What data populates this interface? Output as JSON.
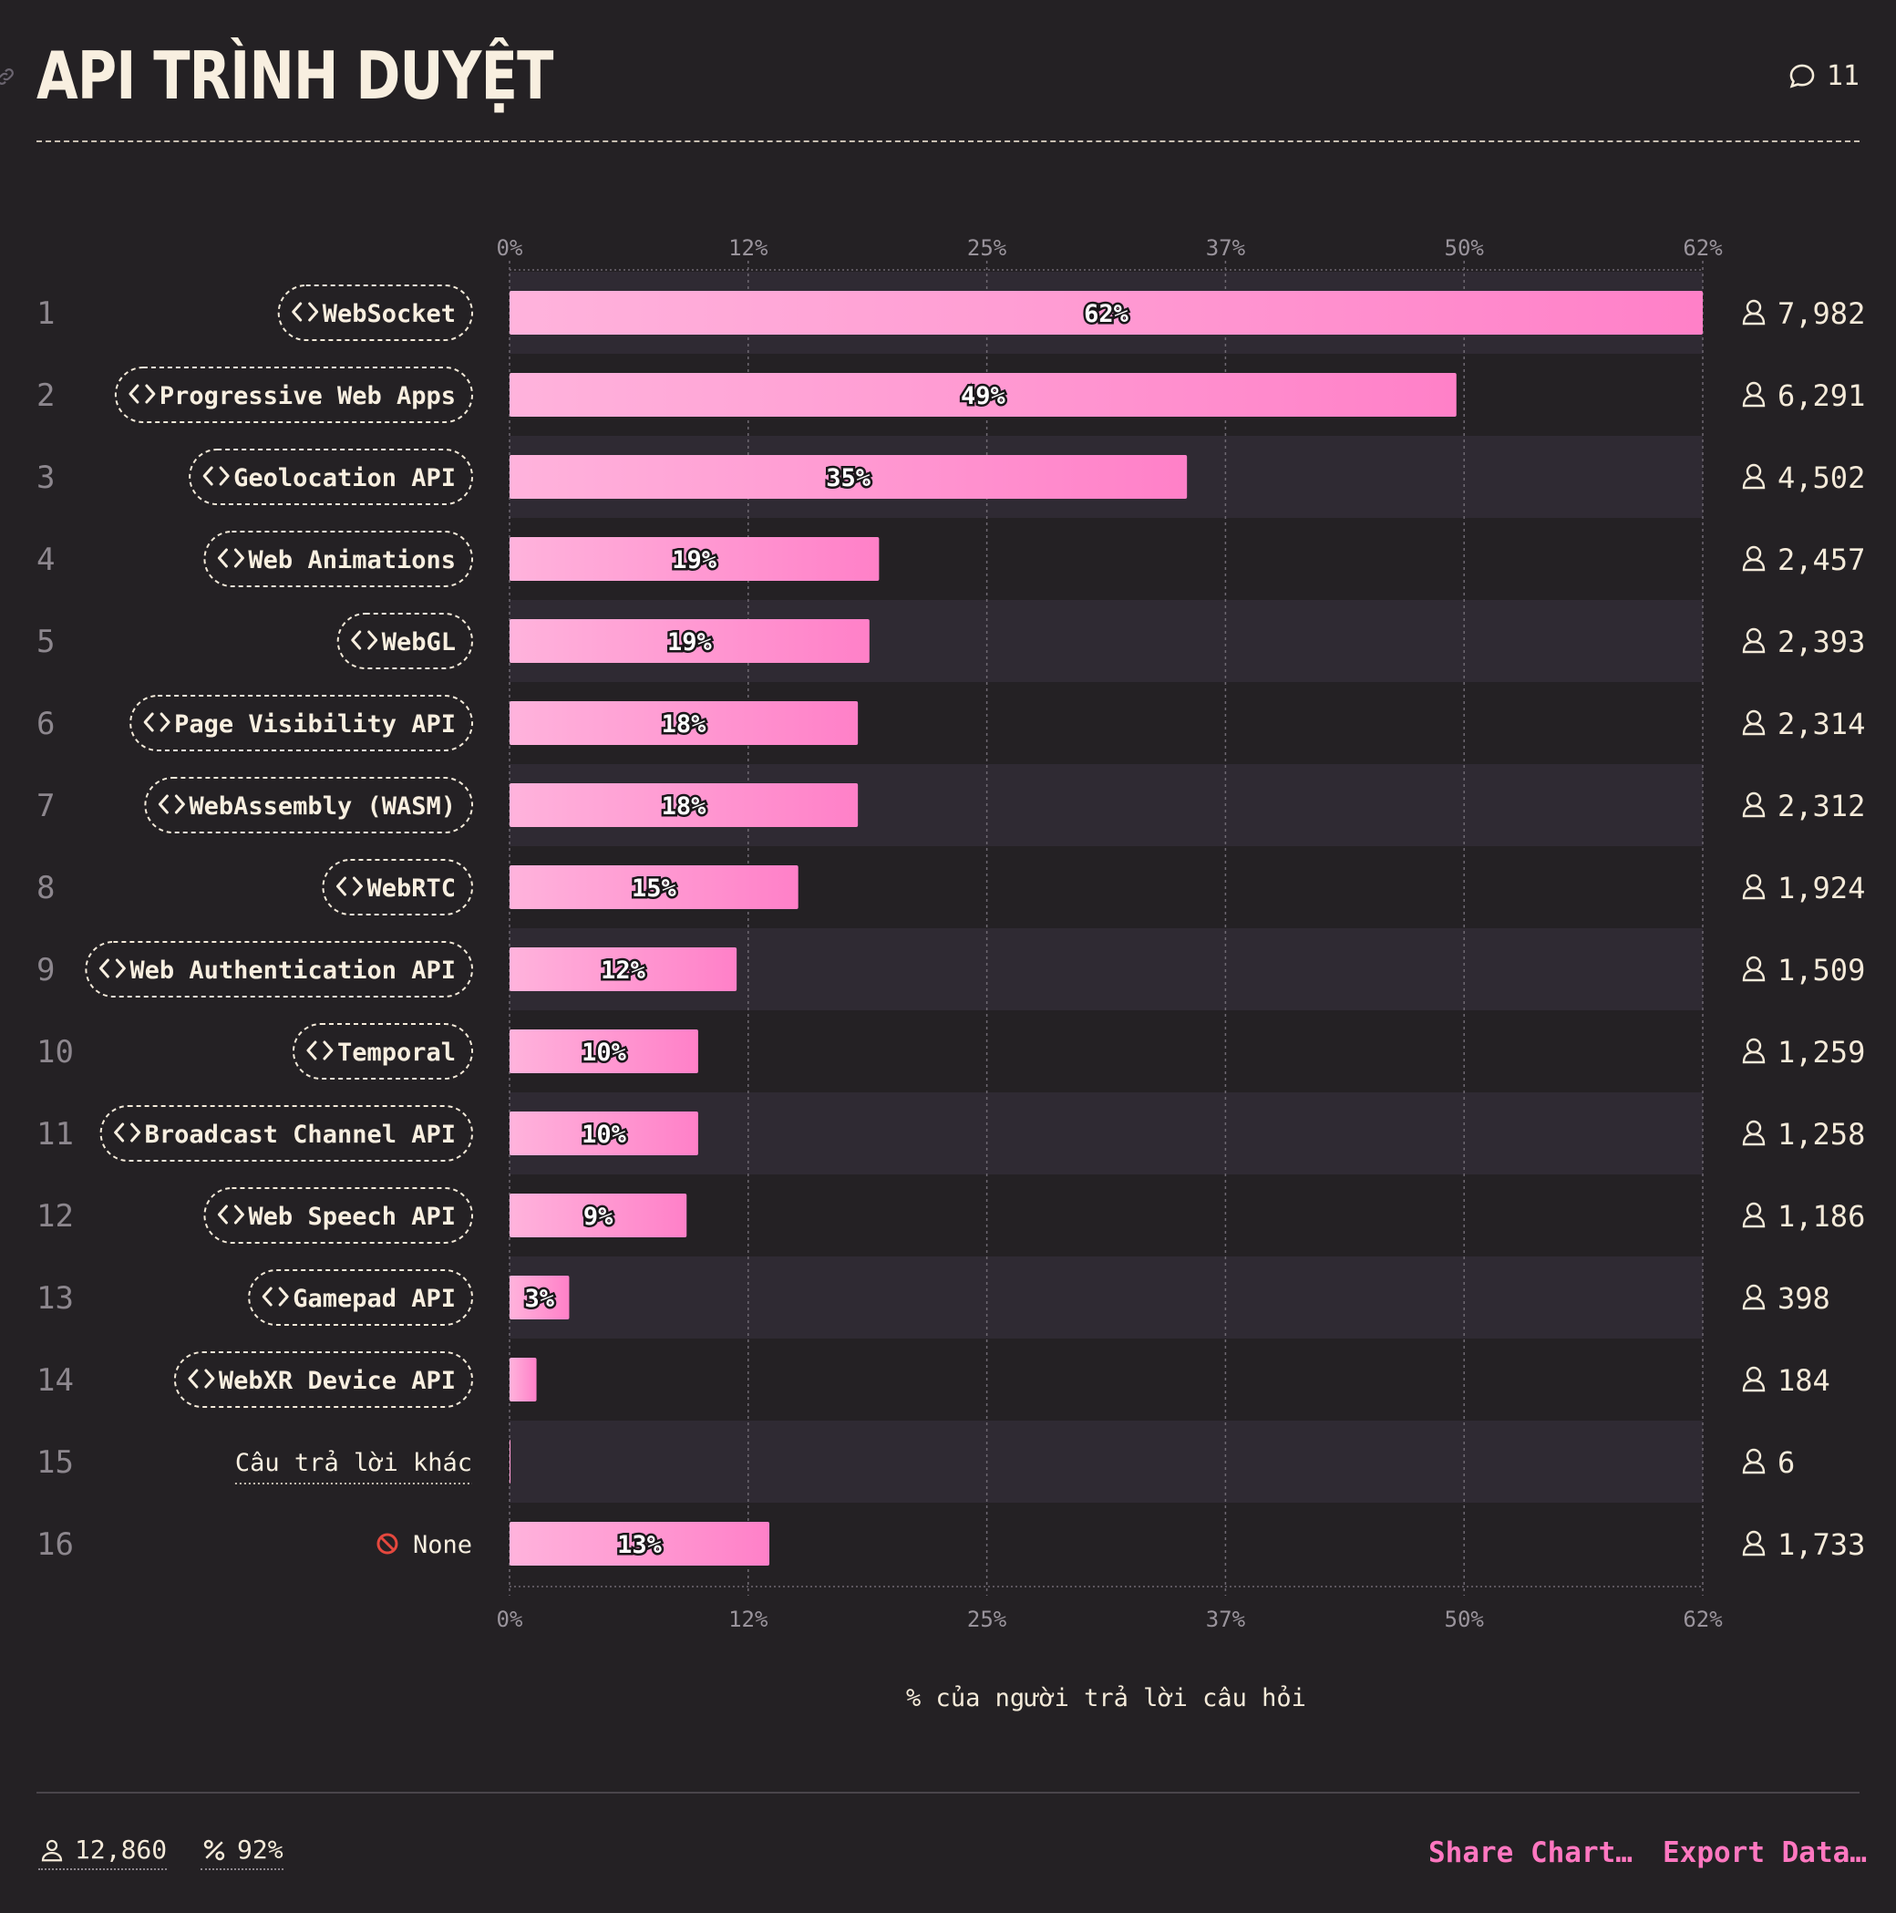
{
  "header": {
    "title": "API TRÌNH DUYỆT",
    "comment_count": "11"
  },
  "chart_data": {
    "type": "bar",
    "orientation": "horizontal",
    "title": "API TRÌNH DUYỆT",
    "xlabel": "% của người trả lời câu hỏi",
    "xlim": [
      0,
      62
    ],
    "x_ticks": [
      "0%",
      "12%",
      "25%",
      "37%",
      "50%",
      "62%"
    ],
    "grid": true,
    "bar_color_start": "#ffb3dc",
    "bar_color_end": "#ff80c8",
    "rows": [
      {
        "rank": "1",
        "label": "WebSocket",
        "kind": "feature",
        "value": 62,
        "value_label": "62%",
        "count": "7,982"
      },
      {
        "rank": "2",
        "label": "Progressive Web Apps",
        "kind": "feature",
        "value": 49.2,
        "value_label": "49%",
        "count": "6,291"
      },
      {
        "rank": "3",
        "label": "Geolocation API",
        "kind": "feature",
        "value": 35.2,
        "value_label": "35%",
        "count": "4,502"
      },
      {
        "rank": "4",
        "label": "Web Animations",
        "kind": "feature",
        "value": 19.2,
        "value_label": "19%",
        "count": "2,457"
      },
      {
        "rank": "5",
        "label": "WebGL",
        "kind": "feature",
        "value": 18.7,
        "value_label": "19%",
        "count": "2,393"
      },
      {
        "rank": "6",
        "label": "Page Visibility API",
        "kind": "feature",
        "value": 18.1,
        "value_label": "18%",
        "count": "2,314"
      },
      {
        "rank": "7",
        "label": "WebAssembly (WASM)",
        "kind": "feature",
        "value": 18.1,
        "value_label": "18%",
        "count": "2,312"
      },
      {
        "rank": "8",
        "label": "WebRTC",
        "kind": "feature",
        "value": 15.0,
        "value_label": "15%",
        "count": "1,924"
      },
      {
        "rank": "9",
        "label": "Web Authentication API",
        "kind": "feature",
        "value": 11.8,
        "value_label": "12%",
        "count": "1,509"
      },
      {
        "rank": "10",
        "label": "Temporal",
        "kind": "feature",
        "value": 9.8,
        "value_label": "10%",
        "count": "1,259"
      },
      {
        "rank": "11",
        "label": "Broadcast Channel API",
        "kind": "feature",
        "value": 9.8,
        "value_label": "10%",
        "count": "1,258"
      },
      {
        "rank": "12",
        "label": "Web Speech API",
        "kind": "feature",
        "value": 9.2,
        "value_label": "9%",
        "count": "1,186"
      },
      {
        "rank": "13",
        "label": "Gamepad API",
        "kind": "feature",
        "value": 3.1,
        "value_label": "3%",
        "count": "398"
      },
      {
        "rank": "14",
        "label": "WebXR Device API",
        "kind": "feature",
        "value": 1.4,
        "value_label": "",
        "count": "184"
      },
      {
        "rank": "15",
        "label": "Câu trả lời khác",
        "kind": "other",
        "value": 0.05,
        "value_label": "",
        "count": "6"
      },
      {
        "rank": "16",
        "label": "None",
        "kind": "none",
        "value": 13.5,
        "value_label": "13%",
        "count": "1,733"
      }
    ]
  },
  "footer": {
    "respondents": "12,860",
    "percentage": "92%",
    "share_label": "Share Chart…",
    "export_label": "Export Data…"
  }
}
